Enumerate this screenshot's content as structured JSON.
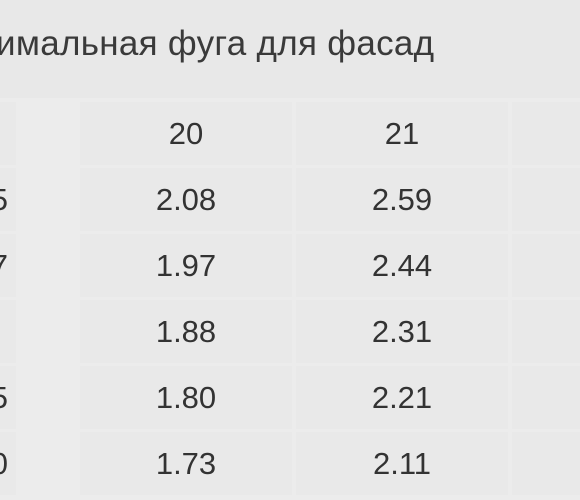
{
  "header": {
    "title": "имальная фуга для фасад"
  },
  "table": {
    "columns": [
      "20",
      "21"
    ],
    "rows": [
      {
        "label": "5",
        "cells": [
          "2.08",
          "2.59"
        ]
      },
      {
        "label": "7",
        "cells": [
          "1.97",
          "2.44"
        ]
      },
      {
        "cells": [
          "1.88",
          "2.31"
        ]
      },
      {
        "label": "5",
        "cells": [
          "1.80",
          "2.21"
        ]
      },
      {
        "label": "0",
        "cells": [
          "1.73",
          "2.11"
        ]
      }
    ]
  }
}
